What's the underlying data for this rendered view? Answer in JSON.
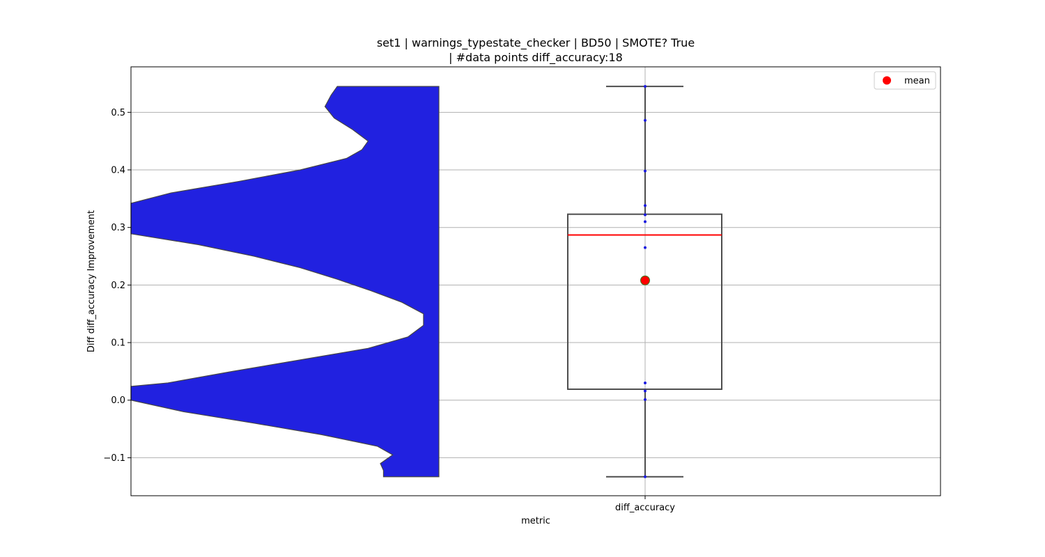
{
  "chart_data": {
    "type": "violin+box",
    "title_line1": "set1 | warnings_typestate_checker | BD50 | SMOTE? True",
    "title_line2": "| #data points diff_accuracy:18",
    "xlabel": "metric",
    "ylabel": "Diff diff_accuracy Improvement",
    "categories": [
      "diff_accuracy"
    ],
    "ylim": [
      -0.166,
      0.579
    ],
    "y_ticks": [
      -0.1,
      0.0,
      0.1,
      0.2,
      0.3,
      0.4,
      0.5
    ],
    "y_tick_labels": [
      "−0.1",
      "0.0",
      "0.1",
      "0.2",
      "0.3",
      "0.4",
      "0.5"
    ],
    "grid": true,
    "legend": {
      "placement": "top-right",
      "entries": [
        {
          "label": "mean",
          "color": "#ff0000"
        }
      ]
    },
    "violin": {
      "color": "#2121e0",
      "edge_color": "#444444",
      "profile": [
        {
          "y": 0.545,
          "w": 0.33
        },
        {
          "y": 0.53,
          "w": 0.35
        },
        {
          "y": 0.51,
          "w": 0.37
        },
        {
          "y": 0.49,
          "w": 0.34
        },
        {
          "y": 0.47,
          "w": 0.28
        },
        {
          "y": 0.45,
          "w": 0.23
        },
        {
          "y": 0.435,
          "w": 0.25
        },
        {
          "y": 0.42,
          "w": 0.3
        },
        {
          "y": 0.4,
          "w": 0.45
        },
        {
          "y": 0.38,
          "w": 0.65
        },
        {
          "y": 0.36,
          "w": 0.87
        },
        {
          "y": 0.342,
          "w": 1.0
        },
        {
          "y": 0.32,
          "w": 1.0
        },
        {
          "y": 0.3,
          "w": 1.0
        },
        {
          "y": 0.289,
          "w": 1.0
        },
        {
          "y": 0.27,
          "w": 0.78
        },
        {
          "y": 0.25,
          "w": 0.6
        },
        {
          "y": 0.23,
          "w": 0.45
        },
        {
          "y": 0.21,
          "w": 0.33
        },
        {
          "y": 0.19,
          "w": 0.22
        },
        {
          "y": 0.17,
          "w": 0.12
        },
        {
          "y": 0.15,
          "w": 0.05
        },
        {
          "y": 0.13,
          "w": 0.05
        },
        {
          "y": 0.11,
          "w": 0.1
        },
        {
          "y": 0.09,
          "w": 0.23
        },
        {
          "y": 0.07,
          "w": 0.45
        },
        {
          "y": 0.05,
          "w": 0.67
        },
        {
          "y": 0.03,
          "w": 0.88
        },
        {
          "y": 0.024,
          "w": 1.0
        },
        {
          "y": 0.01,
          "w": 1.0
        },
        {
          "y": 0.0,
          "w": 1.0
        },
        {
          "y": -0.02,
          "w": 0.83
        },
        {
          "y": -0.04,
          "w": 0.6
        },
        {
          "y": -0.06,
          "w": 0.38
        },
        {
          "y": -0.08,
          "w": 0.2
        },
        {
          "y": -0.095,
          "w": 0.15
        },
        {
          "y": -0.11,
          "w": 0.19
        },
        {
          "y": -0.122,
          "w": 0.18
        },
        {
          "y": -0.133,
          "w": 0.18
        }
      ]
    },
    "box": {
      "q1": 0.019,
      "median": 0.287,
      "q3": 0.323,
      "whisker_low": -0.133,
      "whisker_high": 0.545,
      "mean": 0.208,
      "median_color": "#ff0000",
      "mean_color": "#ff0000"
    },
    "points": [
      0.545,
      0.486,
      0.398,
      0.338,
      0.322,
      0.31,
      0.265,
      0.03,
      0.016,
      0.001,
      -0.133
    ]
  }
}
